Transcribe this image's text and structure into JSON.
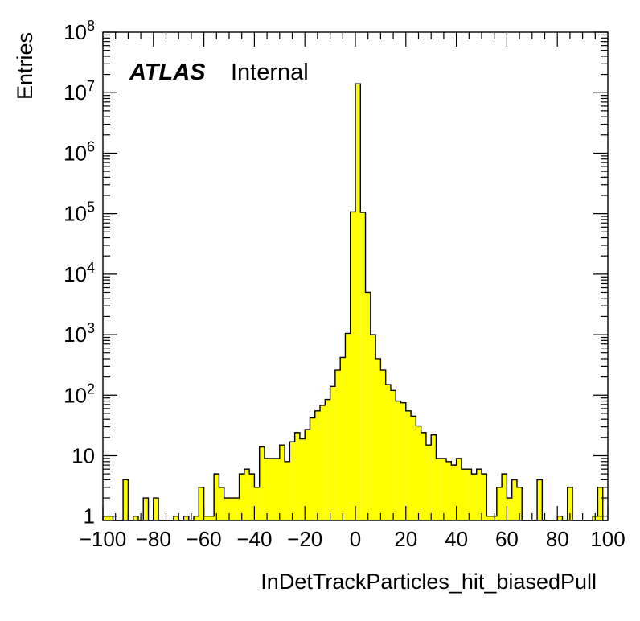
{
  "chart_data": {
    "type": "bar",
    "style": "histogram",
    "fill_color": "#ffff00",
    "line_color": "#000000",
    "xlabel": "InDetTrackParticles_hit_biasedPull",
    "ylabel": "Entries",
    "xlim": [
      -100,
      100
    ],
    "ylim": [
      0.85,
      100000000
    ],
    "yscale": "log",
    "bin_width": 2,
    "x_tick_labels": [
      "−100",
      "−80",
      "−60",
      "−40",
      "−20",
      "0",
      "20",
      "40",
      "60",
      "80",
      "100"
    ],
    "y_tick_labels": [
      {
        "base": "1",
        "exp": ""
      },
      {
        "base": "10",
        "exp": ""
      },
      {
        "base": "10",
        "exp": "2"
      },
      {
        "base": "10",
        "exp": "3"
      },
      {
        "base": "10",
        "exp": "4"
      },
      {
        "base": "10",
        "exp": "5"
      },
      {
        "base": "10",
        "exp": "6"
      },
      {
        "base": "10",
        "exp": "7"
      },
      {
        "base": "10",
        "exp": "8"
      }
    ],
    "label": {
      "experiment": "ATLAS",
      "status": "Internal"
    },
    "bins": [
      {
        "x": -99,
        "y": 1
      },
      {
        "x": -97,
        "y": 1
      },
      {
        "x": -95,
        "y": 0
      },
      {
        "x": -93,
        "y": 0
      },
      {
        "x": -91,
        "y": 4
      },
      {
        "x": -89,
        "y": 0
      },
      {
        "x": -87,
        "y": 1
      },
      {
        "x": -85,
        "y": 0
      },
      {
        "x": -83,
        "y": 2
      },
      {
        "x": -81,
        "y": 0
      },
      {
        "x": -79,
        "y": 2
      },
      {
        "x": -77,
        "y": 0
      },
      {
        "x": -75,
        "y": 0
      },
      {
        "x": -73,
        "y": 0
      },
      {
        "x": -71,
        "y": 1
      },
      {
        "x": -69,
        "y": 0
      },
      {
        "x": -67,
        "y": 1
      },
      {
        "x": -65,
        "y": 0
      },
      {
        "x": -63,
        "y": 1
      },
      {
        "x": -61,
        "y": 3
      },
      {
        "x": -59,
        "y": 1
      },
      {
        "x": -57,
        "y": 1
      },
      {
        "x": -55,
        "y": 5
      },
      {
        "x": -53,
        "y": 3
      },
      {
        "x": -51,
        "y": 2
      },
      {
        "x": -49,
        "y": 2
      },
      {
        "x": -47,
        "y": 2
      },
      {
        "x": -45,
        "y": 5
      },
      {
        "x": -43,
        "y": 6
      },
      {
        "x": -41,
        "y": 5
      },
      {
        "x": -39,
        "y": 3
      },
      {
        "x": -37,
        "y": 14
      },
      {
        "x": -35,
        "y": 9
      },
      {
        "x": -33,
        "y": 9
      },
      {
        "x": -31,
        "y": 9
      },
      {
        "x": -29,
        "y": 15
      },
      {
        "x": -27,
        "y": 8
      },
      {
        "x": -25,
        "y": 17
      },
      {
        "x": -23,
        "y": 24
      },
      {
        "x": -21,
        "y": 19
      },
      {
        "x": -19,
        "y": 27
      },
      {
        "x": -17,
        "y": 42
      },
      {
        "x": -15,
        "y": 55
      },
      {
        "x": -13,
        "y": 68
      },
      {
        "x": -11,
        "y": 85
      },
      {
        "x": -9,
        "y": 140
      },
      {
        "x": -7,
        "y": 260
      },
      {
        "x": -5,
        "y": 420
      },
      {
        "x": -3,
        "y": 1050
      },
      {
        "x": -1,
        "y": 107000
      },
      {
        "x": 1,
        "y": 14000000
      },
      {
        "x": 3,
        "y": 105000
      },
      {
        "x": 5,
        "y": 5000
      },
      {
        "x": 7,
        "y": 1000
      },
      {
        "x": 9,
        "y": 400
      },
      {
        "x": 11,
        "y": 260
      },
      {
        "x": 13,
        "y": 150
      },
      {
        "x": 15,
        "y": 120
      },
      {
        "x": 17,
        "y": 80
      },
      {
        "x": 19,
        "y": 75
      },
      {
        "x": 21,
        "y": 55
      },
      {
        "x": 23,
        "y": 45
      },
      {
        "x": 25,
        "y": 31
      },
      {
        "x": 27,
        "y": 24
      },
      {
        "x": 29,
        "y": 15
      },
      {
        "x": 31,
        "y": 22
      },
      {
        "x": 33,
        "y": 9
      },
      {
        "x": 35,
        "y": 9
      },
      {
        "x": 37,
        "y": 8
      },
      {
        "x": 39,
        "y": 7
      },
      {
        "x": 41,
        "y": 9
      },
      {
        "x": 43,
        "y": 6
      },
      {
        "x": 45,
        "y": 6
      },
      {
        "x": 47,
        "y": 5
      },
      {
        "x": 49,
        "y": 6
      },
      {
        "x": 51,
        "y": 5
      },
      {
        "x": 53,
        "y": 1
      },
      {
        "x": 55,
        "y": 1
      },
      {
        "x": 57,
        "y": 3
      },
      {
        "x": 59,
        "y": 5
      },
      {
        "x": 61,
        "y": 2
      },
      {
        "x": 63,
        "y": 4
      },
      {
        "x": 65,
        "y": 3
      },
      {
        "x": 67,
        "y": 0
      },
      {
        "x": 69,
        "y": 0
      },
      {
        "x": 71,
        "y": 0
      },
      {
        "x": 73,
        "y": 4
      },
      {
        "x": 75,
        "y": 0
      },
      {
        "x": 77,
        "y": 0
      },
      {
        "x": 79,
        "y": 0
      },
      {
        "x": 81,
        "y": 1
      },
      {
        "x": 83,
        "y": 0
      },
      {
        "x": 85,
        "y": 3
      },
      {
        "x": 87,
        "y": 0
      },
      {
        "x": 89,
        "y": 0
      },
      {
        "x": 91,
        "y": 0
      },
      {
        "x": 93,
        "y": 0
      },
      {
        "x": 95,
        "y": 1
      },
      {
        "x": 97,
        "y": 3
      },
      {
        "x": 99,
        "y": 0
      }
    ]
  }
}
